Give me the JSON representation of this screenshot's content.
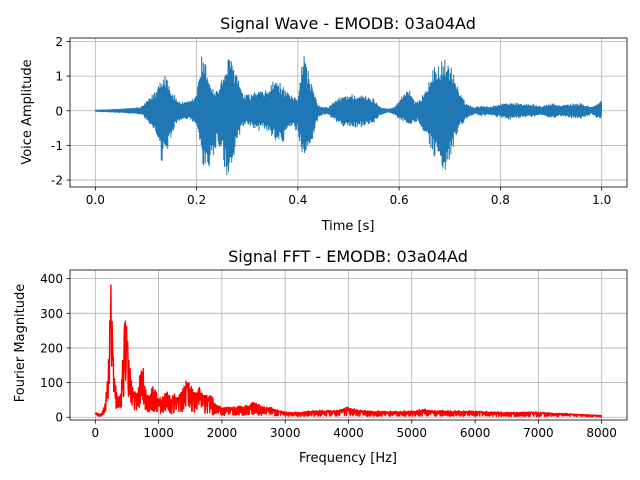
{
  "chart_data": [
    {
      "type": "line",
      "title": "Signal Wave - EMODB: 03a04Ad",
      "xlabel": "Time [s]",
      "ylabel": "Voice Amplitude",
      "xlim": [
        -0.05,
        1.05
      ],
      "ylim": [
        -2.2,
        2.1
      ],
      "xticks": [
        "0.0",
        "0.2",
        "0.4",
        "0.6",
        "0.8",
        "1.0"
      ],
      "yticks": [
        "-2",
        "-1",
        "0",
        "1",
        "2"
      ],
      "grid": true,
      "legend": "none",
      "color": "#1f77b4",
      "series": [
        {
          "envelope": {
            "x": [
              0.0,
              0.05,
              0.09,
              0.1,
              0.12,
              0.13,
              0.14,
              0.15,
              0.16,
              0.17,
              0.18,
              0.19,
              0.2,
              0.21,
              0.22,
              0.23,
              0.24,
              0.25,
              0.26,
              0.27,
              0.28,
              0.29,
              0.3,
              0.31,
              0.32,
              0.33,
              0.34,
              0.35,
              0.36,
              0.37,
              0.38,
              0.39,
              0.4,
              0.41,
              0.42,
              0.43,
              0.44,
              0.45,
              0.46,
              0.47,
              0.48,
              0.49,
              0.5,
              0.52,
              0.55,
              0.56,
              0.57,
              0.58,
              0.59,
              0.6,
              0.61,
              0.62,
              0.63,
              0.64,
              0.65,
              0.66,
              0.67,
              0.68,
              0.69,
              0.7,
              0.71,
              0.72,
              0.73,
              0.74,
              0.75,
              0.76,
              0.78,
              0.8,
              0.82,
              0.84,
              0.86,
              0.88,
              0.9,
              0.92,
              0.94,
              0.96,
              0.98,
              0.99,
              1.0
            ],
            "upper": [
              0.02,
              0.05,
              0.1,
              0.25,
              0.6,
              1.05,
              1.1,
              0.6,
              0.35,
              0.25,
              0.25,
              0.3,
              0.5,
              1.6,
              1.3,
              0.7,
              0.6,
              0.9,
              1.5,
              1.5,
              1.1,
              0.5,
              0.45,
              0.5,
              0.6,
              0.55,
              0.6,
              0.85,
              0.9,
              0.7,
              0.5,
              0.4,
              0.4,
              1.8,
              1.2,
              0.6,
              0.15,
              0.1,
              0.1,
              0.25,
              0.35,
              0.45,
              0.48,
              0.48,
              0.35,
              0.15,
              0.08,
              0.05,
              0.1,
              0.3,
              0.55,
              0.7,
              0.25,
              0.3,
              0.6,
              0.9,
              1.3,
              1.4,
              1.5,
              1.4,
              1.0,
              0.5,
              0.25,
              0.15,
              0.1,
              0.15,
              0.12,
              0.2,
              0.25,
              0.2,
              0.2,
              0.12,
              0.22,
              0.15,
              0.2,
              0.22,
              0.1,
              0.2,
              0.3
            ],
            "lower": [
              -0.02,
              -0.05,
              -0.1,
              -0.25,
              -0.7,
              -1.5,
              -1.4,
              -0.8,
              -0.35,
              -0.25,
              -0.25,
              -0.3,
              -0.45,
              -1.5,
              -1.9,
              -1.5,
              -1.0,
              -1.2,
              -2.0,
              -1.6,
              -1.0,
              -0.5,
              -0.45,
              -0.5,
              -0.6,
              -0.55,
              -0.6,
              -0.75,
              -0.9,
              -1.0,
              -0.6,
              -0.5,
              -0.6,
              -1.4,
              -1.1,
              -0.8,
              -0.2,
              -0.1,
              -0.1,
              -0.25,
              -0.35,
              -0.45,
              -0.48,
              -0.48,
              -0.35,
              -0.15,
              -0.08,
              -0.05,
              -0.1,
              -0.25,
              -0.3,
              -0.4,
              -0.3,
              -0.35,
              -0.8,
              -1.0,
              -1.4,
              -1.5,
              -1.75,
              -1.4,
              -0.9,
              -0.5,
              -0.3,
              -0.15,
              -0.1,
              -0.15,
              -0.12,
              -0.2,
              -0.25,
              -0.2,
              -0.2,
              -0.12,
              -0.22,
              -0.15,
              -0.2,
              -0.22,
              -0.1,
              -0.2,
              -0.25
            ]
          }
        }
      ]
    },
    {
      "type": "line",
      "title": "Signal FFT - EMODB: 03a04Ad",
      "xlabel": "Frequency [Hz]",
      "ylabel": "Fourier Magnitude",
      "xlim": [
        -400,
        8400
      ],
      "ylim": [
        -8,
        425
      ],
      "xticks": [
        "0",
        "1000",
        "2000",
        "3000",
        "4000",
        "5000",
        "6000",
        "7000",
        "8000"
      ],
      "yticks": [
        "0",
        "100",
        "200",
        "300",
        "400"
      ],
      "grid": true,
      "legend": "none",
      "color": "#ff0000",
      "series": [
        {
          "envelope": {
            "x": [
              0,
              50,
              100,
              150,
              200,
              230,
              250,
              270,
              300,
              350,
              400,
              450,
              480,
              500,
              520,
              550,
              600,
              650,
              700,
              750,
              780,
              800,
              850,
              900,
              950,
              1000,
              1050,
              1100,
              1150,
              1200,
              1250,
              1300,
              1350,
              1400,
              1450,
              1500,
              1550,
              1600,
              1650,
              1700,
              1750,
              1800,
              1850,
              1900,
              2000,
              2200,
              2400,
              2500,
              2550,
              2600,
              2700,
              2800,
              2900,
              3000,
              3200,
              3500,
              3800,
              4000,
              4100,
              4200,
              4400,
              4700,
              5000,
              5200,
              5300,
              5500,
              6000,
              6500,
              7000,
              7500,
              8000
            ],
            "upper": [
              15,
              10,
              10,
              40,
              120,
              320,
              410,
              250,
              120,
              60,
              70,
              230,
              345,
              280,
              210,
              150,
              80,
              70,
              120,
              165,
              100,
              80,
              70,
              90,
              80,
              60,
              55,
              80,
              70,
              60,
              70,
              60,
              80,
              90,
              120,
              100,
              80,
              70,
              90,
              80,
              60,
              70,
              60,
              40,
              30,
              30,
              35,
              45,
              40,
              35,
              30,
              28,
              20,
              15,
              15,
              20,
              20,
              30,
              25,
              20,
              18,
              18,
              18,
              25,
              20,
              20,
              18,
              15,
              15,
              10,
              5
            ],
            "lower": [
              5,
              3,
              3,
              10,
              40,
              100,
              150,
              80,
              30,
              20,
              20,
              60,
              100,
              80,
              60,
              40,
              20,
              18,
              30,
              40,
              25,
              20,
              15,
              20,
              15,
              12,
              10,
              15,
              12,
              10,
              12,
              10,
              15,
              18,
              25,
              20,
              15,
              12,
              15,
              12,
              10,
              10,
              8,
              5,
              5,
              5,
              5,
              8,
              5,
              5,
              5,
              5,
              3,
              3,
              3,
              3,
              3,
              5,
              3,
              3,
              3,
              3,
              3,
              3,
              3,
              3,
              3,
              2,
              2,
              2,
              1
            ]
          }
        }
      ]
    }
  ]
}
